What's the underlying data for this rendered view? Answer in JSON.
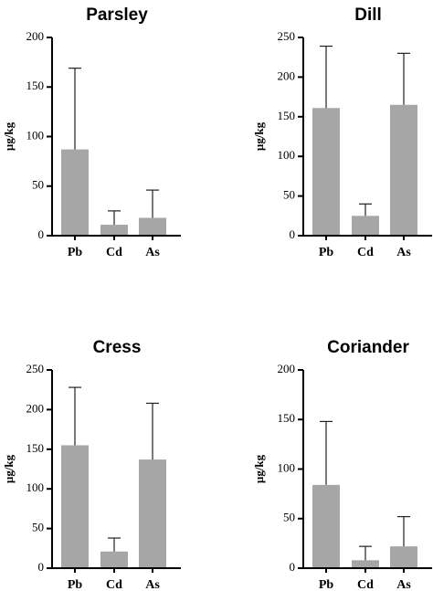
{
  "chart_data": [
    {
      "type": "bar",
      "title": "Parsley",
      "ylabel": "µg/kg",
      "xlabel": "",
      "categories": [
        "Pb",
        "Cd",
        "As"
      ],
      "values": [
        87,
        11,
        18
      ],
      "errors": [
        82,
        14,
        28
      ],
      "ylim": [
        0,
        200
      ],
      "yticks": [
        0,
        50,
        100,
        150,
        200
      ]
    },
    {
      "type": "bar",
      "title": "Dill",
      "ylabel": "µg/kg",
      "xlabel": "",
      "categories": [
        "Pb",
        "Cd",
        "As"
      ],
      "values": [
        161,
        25,
        165
      ],
      "errors": [
        78,
        15,
        65
      ],
      "ylim": [
        0,
        250
      ],
      "yticks": [
        0,
        50,
        100,
        150,
        200,
        250
      ]
    },
    {
      "type": "bar",
      "title": "Cress",
      "ylabel": "µg/kg",
      "xlabel": "",
      "categories": [
        "Pb",
        "Cd",
        "As"
      ],
      "values": [
        155,
        21,
        137
      ],
      "errors": [
        73,
        17,
        71
      ],
      "ylim": [
        0,
        250
      ],
      "yticks": [
        0,
        50,
        100,
        150,
        200,
        250
      ]
    },
    {
      "type": "bar",
      "title": "Coriander",
      "ylabel": "µg/kg",
      "xlabel": "",
      "categories": [
        "Pb",
        "Cd",
        "As"
      ],
      "values": [
        84,
        8,
        22
      ],
      "errors": [
        64,
        14,
        30
      ],
      "ylim": [
        0,
        200
      ],
      "yticks": [
        0,
        50,
        100,
        150,
        200
      ]
    }
  ],
  "colors": {
    "bar": "#a6a6a6",
    "axis": "#000000",
    "error_bar": "#222222"
  }
}
